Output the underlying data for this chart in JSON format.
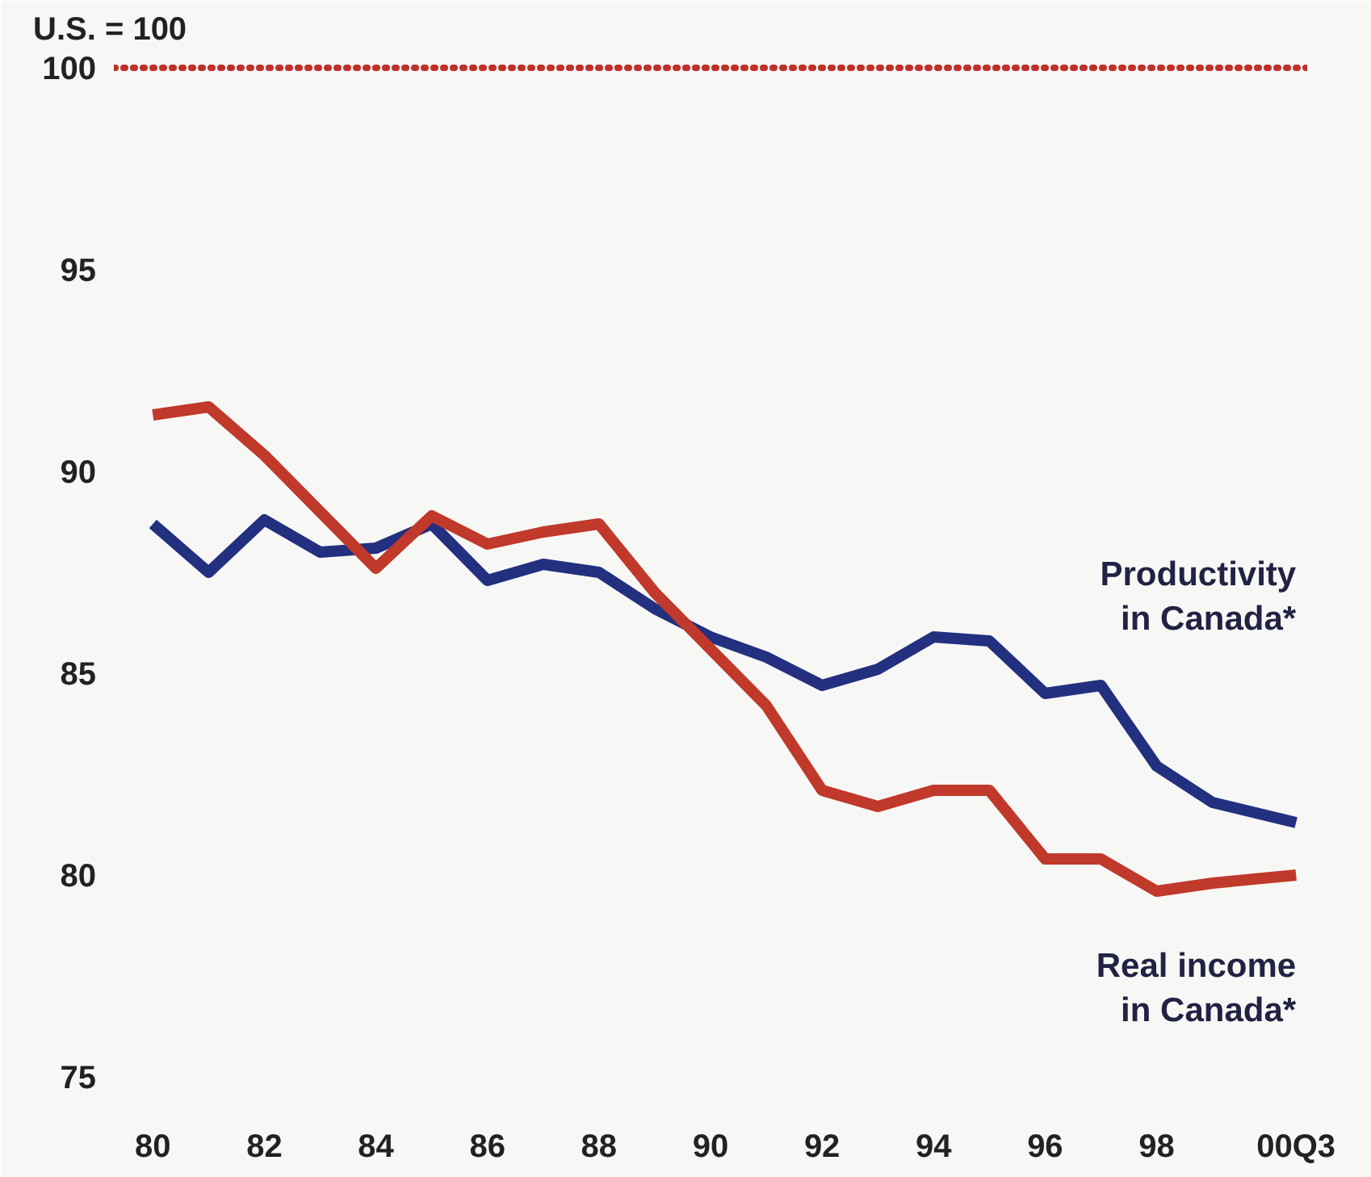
{
  "chart_data": {
    "type": "line",
    "ylabel": "U.S. = 100",
    "x": [
      80,
      81,
      82,
      83,
      84,
      85,
      86,
      87,
      88,
      89,
      90,
      91,
      92,
      93,
      94,
      95,
      96,
      97,
      98,
      99,
      100.5
    ],
    "series": [
      {
        "name": "Productivity\nin Canada*",
        "color": "#23307f",
        "values": [
          88.7,
          87.5,
          88.8,
          88.0,
          88.1,
          88.7,
          87.3,
          87.7,
          87.5,
          86.6,
          85.9,
          85.4,
          84.7,
          85.1,
          85.9,
          85.8,
          84.5,
          84.7,
          82.7,
          81.8,
          81.3
        ]
      },
      {
        "name": "Real income\nin Canada*",
        "color": "#c0392b",
        "values": [
          91.4,
          91.6,
          90.4,
          89.0,
          87.6,
          88.9,
          88.2,
          88.5,
          88.7,
          87.0,
          85.6,
          84.2,
          82.1,
          81.7,
          82.1,
          82.1,
          80.4,
          80.4,
          79.6,
          79.8,
          80.0
        ]
      }
    ],
    "xlim": [
      79.3,
      100.7
    ],
    "ylim": [
      74.5,
      100.3
    ],
    "xticks": [
      80,
      82,
      84,
      86,
      88,
      90,
      92,
      94,
      96,
      98,
      {
        "value": 100.5,
        "label": "00Q3"
      }
    ],
    "yticks": [
      75,
      80,
      85,
      90,
      95,
      100
    ],
    "ref_lines": [
      {
        "axis": "y",
        "value": 100,
        "color": "#c0302a",
        "line_style": "dotted"
      }
    ],
    "grid": false,
    "marker": "none",
    "line_style": "solid"
  }
}
